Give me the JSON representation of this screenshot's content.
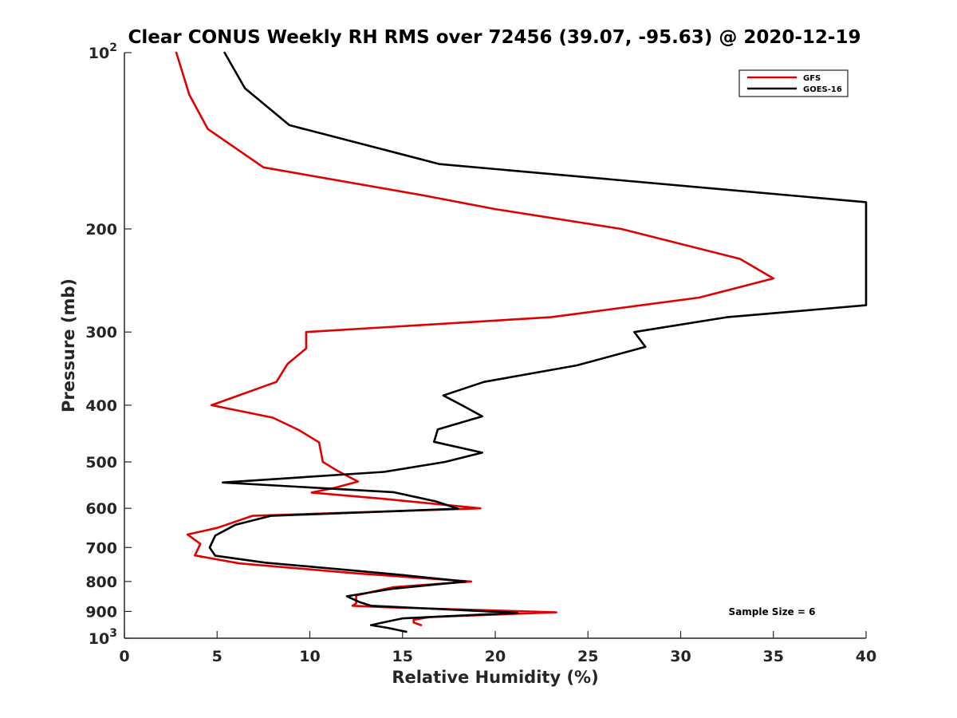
{
  "chart_data": {
    "type": "line",
    "title": "Clear CONUS Weekly RH RMS over 72456 (39.07, -95.63) @ 2020-12-19",
    "xlabel": "Relative Humidity (%)",
    "ylabel": "Pressure (mb)",
    "xlim": [
      0,
      40
    ],
    "ylim": [
      100,
      1000
    ],
    "yscale": "log",
    "y_reversed": true,
    "grid": false,
    "legend_position": "top-right",
    "x_ticks": [
      "0",
      "5",
      "10",
      "15",
      "20",
      "25",
      "30",
      "35",
      "40"
    ],
    "y_ticks": [
      {
        "value": 100,
        "label": "10",
        "exponent": "2"
      },
      {
        "value": 200,
        "label": "200"
      },
      {
        "value": 300,
        "label": "300"
      },
      {
        "value": 400,
        "label": "400"
      },
      {
        "value": 500,
        "label": "500"
      },
      {
        "value": 600,
        "label": "600"
      },
      {
        "value": 700,
        "label": "700"
      },
      {
        "value": 800,
        "label": "800"
      },
      {
        "value": 900,
        "label": "900"
      },
      {
        "value": 1000,
        "label": "10",
        "exponent": "3"
      }
    ],
    "series": [
      {
        "name": "GFS",
        "color": "#e00000",
        "points": [
          [
            2.8,
            100
          ],
          [
            3.5,
            118
          ],
          [
            4.5,
            135
          ],
          [
            7.5,
            157
          ],
          [
            16,
            175
          ],
          [
            20,
            185
          ],
          [
            26.8,
            200
          ],
          [
            33.2,
            225
          ],
          [
            35,
            243
          ],
          [
            31,
            262
          ],
          [
            23,
            283
          ],
          [
            9.8,
            300
          ],
          [
            9.8,
            320
          ],
          [
            8.8,
            340
          ],
          [
            8.2,
            365
          ],
          [
            4.7,
            400
          ],
          [
            8,
            420
          ],
          [
            9.4,
            441
          ],
          [
            10.5,
            463
          ],
          [
            10.7,
            500
          ],
          [
            11.5,
            518
          ],
          [
            12.6,
            540
          ],
          [
            11.3,
            554
          ],
          [
            10.1,
            564
          ],
          [
            14,
            578
          ],
          [
            19.2,
            600
          ],
          [
            6.9,
            618
          ],
          [
            5,
            648
          ],
          [
            3.4,
            665
          ],
          [
            4.1,
            690
          ],
          [
            3.8,
            722
          ],
          [
            6.2,
            745
          ],
          [
            12.5,
            775
          ],
          [
            18.7,
            800
          ],
          [
            14.5,
            818
          ],
          [
            12.5,
            845
          ],
          [
            12.5,
            872
          ],
          [
            12.3,
            880
          ],
          [
            14,
            885
          ],
          [
            23.3,
            903
          ],
          [
            16.5,
            920
          ],
          [
            15.6,
            930
          ],
          [
            15.6,
            940
          ],
          [
            16,
            950
          ]
        ]
      },
      {
        "name": "GOES-16",
        "color": "#000000",
        "points": [
          [
            5.4,
            100
          ],
          [
            6.5,
            115
          ],
          [
            8.9,
            133
          ],
          [
            17,
            155
          ],
          [
            40,
            180
          ],
          [
            40,
            270
          ],
          [
            32.5,
            283
          ],
          [
            27.5,
            300
          ],
          [
            28.1,
            318
          ],
          [
            24.4,
            342
          ],
          [
            19.4,
            365
          ],
          [
            17.2,
            385
          ],
          [
            18.2,
            400
          ],
          [
            19.3,
            418
          ],
          [
            16.9,
            440
          ],
          [
            16.7,
            462
          ],
          [
            19.3,
            482
          ],
          [
            17.3,
            500
          ],
          [
            14,
            520
          ],
          [
            5.3,
            542
          ],
          [
            14.5,
            563
          ],
          [
            16.8,
            584
          ],
          [
            18,
            601
          ],
          [
            7.9,
            618
          ],
          [
            6,
            640
          ],
          [
            4.9,
            668
          ],
          [
            4.6,
            700
          ],
          [
            4.9,
            723
          ],
          [
            7.6,
            743
          ],
          [
            11.9,
            764
          ],
          [
            15,
            780
          ],
          [
            18.4,
            800
          ],
          [
            14.5,
            823
          ],
          [
            12,
            848
          ],
          [
            12.7,
            868
          ],
          [
            13.3,
            880
          ],
          [
            21.2,
            905
          ],
          [
            15,
            925
          ],
          [
            13.8,
            942
          ],
          [
            13.3,
            950
          ],
          [
            14.2,
            960
          ],
          [
            15.2,
            975
          ]
        ]
      }
    ],
    "annotations": [
      "Sample Size = 6"
    ]
  }
}
